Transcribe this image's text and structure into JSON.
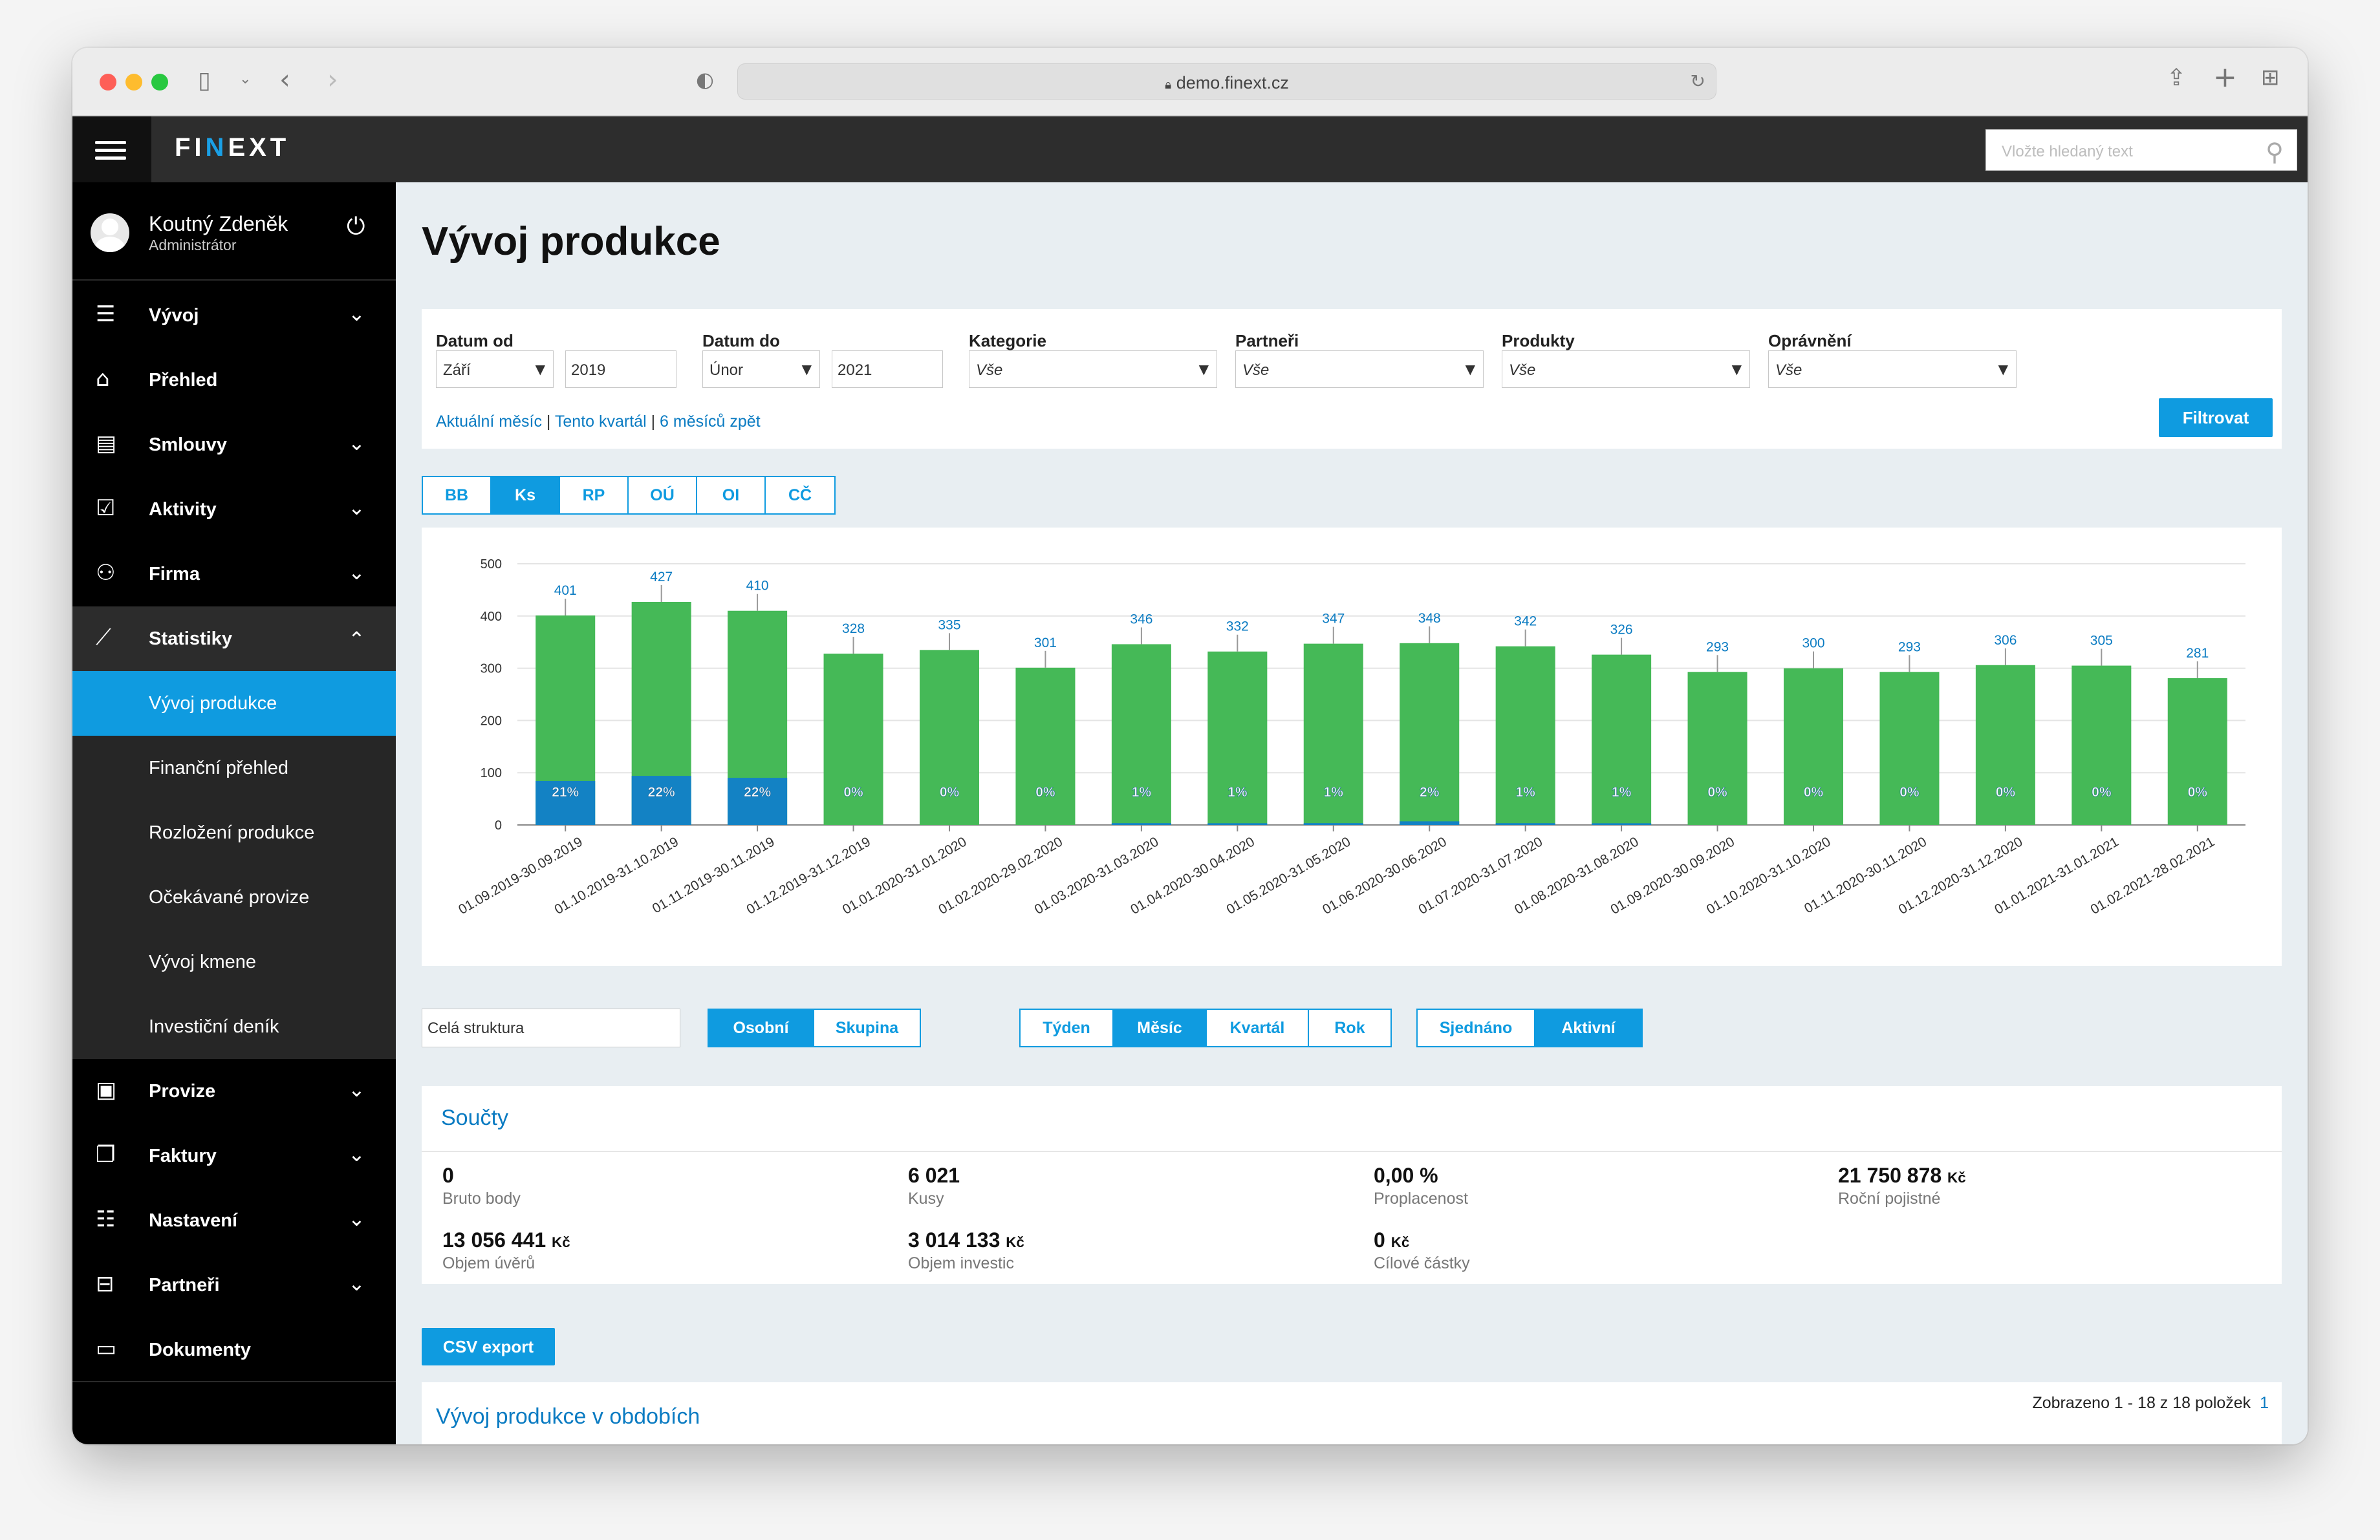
{
  "browser": {
    "url": "demo.finext.cz"
  },
  "header": {
    "logo_before": "FI",
    "logo_accent": "N",
    "logo_after": "EXT",
    "search_placeholder": "Vložte hledaný text"
  },
  "sidebar": {
    "user_name": "Koutný Zdeněk",
    "user_role": "Administrátor",
    "menu": [
      {
        "label": "Vývoj",
        "icon": "sliders-icon",
        "has_submenu": true
      },
      {
        "label": "Přehled",
        "icon": "home-icon",
        "has_submenu": false
      },
      {
        "label": "Smlouvy",
        "icon": "stack-icon",
        "has_submenu": true
      },
      {
        "label": "Aktivity",
        "icon": "calendar-icon",
        "has_submenu": true
      },
      {
        "label": "Firma",
        "icon": "users-icon",
        "has_submenu": true
      },
      {
        "label": "Statistiky",
        "icon": "chart-line-icon",
        "has_submenu": true,
        "expanded": true
      }
    ],
    "submenu": [
      "Vývoj produkce",
      "Finanční přehled",
      "Rozložení produkce",
      "Očekávané provize",
      "Vývoj kmene",
      "Investiční deník"
    ],
    "menu_bottom": [
      {
        "label": "Provize",
        "icon": "wallet-icon"
      },
      {
        "label": "Faktury",
        "icon": "documents-icon"
      },
      {
        "label": "Nastavení",
        "icon": "settings-sliders-icon"
      },
      {
        "label": "Partneři",
        "icon": "briefcase-icon"
      },
      {
        "label": "Dokumenty",
        "icon": "folder-icon"
      }
    ]
  },
  "page": {
    "title": "Vývoj produkce"
  },
  "filters": {
    "date_from_label": "Datum od",
    "date_from_month": "Září",
    "date_from_year": "2019",
    "date_to_label": "Datum do",
    "date_to_month": "Únor",
    "date_to_year": "2021",
    "category_label": "Kategorie",
    "category_value": "Vše",
    "partners_label": "Partneři",
    "partners_value": "Vše",
    "products_label": "Produkty",
    "products_value": "Vše",
    "permissions_label": "Oprávnění",
    "permissions_value": "Vše",
    "quick_links": [
      "Aktuální měsíc",
      "Tento kvartál",
      "6 měsíců zpět"
    ],
    "filter_button": "Filtrovat"
  },
  "metric_tabs": [
    "BB",
    "Ks",
    "RP",
    "OÚ",
    "OI",
    "CČ"
  ],
  "metric_active": "Ks",
  "chart_data": {
    "type": "bar",
    "stacked": true,
    "categories": [
      "01.09.2019-30.09.2019",
      "01.10.2019-31.10.2019",
      "01.11.2019-30.11.2019",
      "01.12.2019-31.12.2019",
      "01.01.2020-31.01.2020",
      "01.02.2020-29.02.2020",
      "01.03.2020-31.03.2020",
      "01.04.2020-30.04.2020",
      "01.05.2020-31.05.2020",
      "01.06.2020-30.06.2020",
      "01.07.2020-31.07.2020",
      "01.08.2020-31.08.2020",
      "01.09.2020-30.09.2020",
      "01.10.2020-31.10.2020",
      "01.11.2020-30.11.2020",
      "01.12.2020-31.12.2020",
      "01.01.2021-31.01.2021",
      "01.02.2021-28.02.2021"
    ],
    "totals": [
      401,
      427,
      410,
      328,
      335,
      301,
      346,
      332,
      347,
      348,
      342,
      326,
      293,
      300,
      293,
      306,
      305,
      281
    ],
    "percent_labels": [
      "21%",
      "22%",
      "22%",
      "0%",
      "0%",
      "0%",
      "1%",
      "1%",
      "1%",
      "2%",
      "1%",
      "1%",
      "0%",
      "0%",
      "0%",
      "0%",
      "0%",
      "0%"
    ],
    "percent_values": [
      21,
      22,
      22,
      0,
      0,
      0,
      1,
      1,
      1,
      2,
      1,
      1,
      0,
      0,
      0,
      0,
      0,
      0
    ],
    "ylim": [
      0,
      500
    ],
    "yticks": [
      0,
      100,
      200,
      300,
      400,
      500
    ],
    "grid": true,
    "colors": {
      "total": "#45b957",
      "share": "#1382c4",
      "label": "#0a7bc2"
    }
  },
  "controls": {
    "structure_value": "Celá struktura",
    "scope_tabs": [
      "Osobní",
      "Skupina"
    ],
    "scope_active": "Osobní",
    "period_tabs": [
      "Týden",
      "Měsíc",
      "Kvartál",
      "Rok"
    ],
    "period_active": "Měsíc",
    "state_tabs": [
      "Sjednáno",
      "Aktivní"
    ],
    "state_active": "Aktivní"
  },
  "summary": {
    "title": "Součty",
    "items": [
      {
        "value": "0",
        "label": "Bruto body"
      },
      {
        "value": "6 021",
        "label": "Kusy"
      },
      {
        "value": "0,00 %",
        "label": "Proplacenost"
      },
      {
        "value": "21 750 878",
        "unit": "Kč",
        "label": "Roční pojistné"
      },
      {
        "value": "13 056 441",
        "unit": "Kč",
        "label": "Objem úvěrů"
      },
      {
        "value": "3 014 133",
        "unit": "Kč",
        "label": "Objem investic"
      },
      {
        "value": "0",
        "unit": "Kč",
        "label": "Cílové částky"
      }
    ]
  },
  "export_button": "CSV export",
  "periods_table": {
    "title": "Vývoj produkce v obdobích",
    "pagination_text": "Zobrazeno 1 - 18 z 18 položek",
    "page": "1"
  }
}
